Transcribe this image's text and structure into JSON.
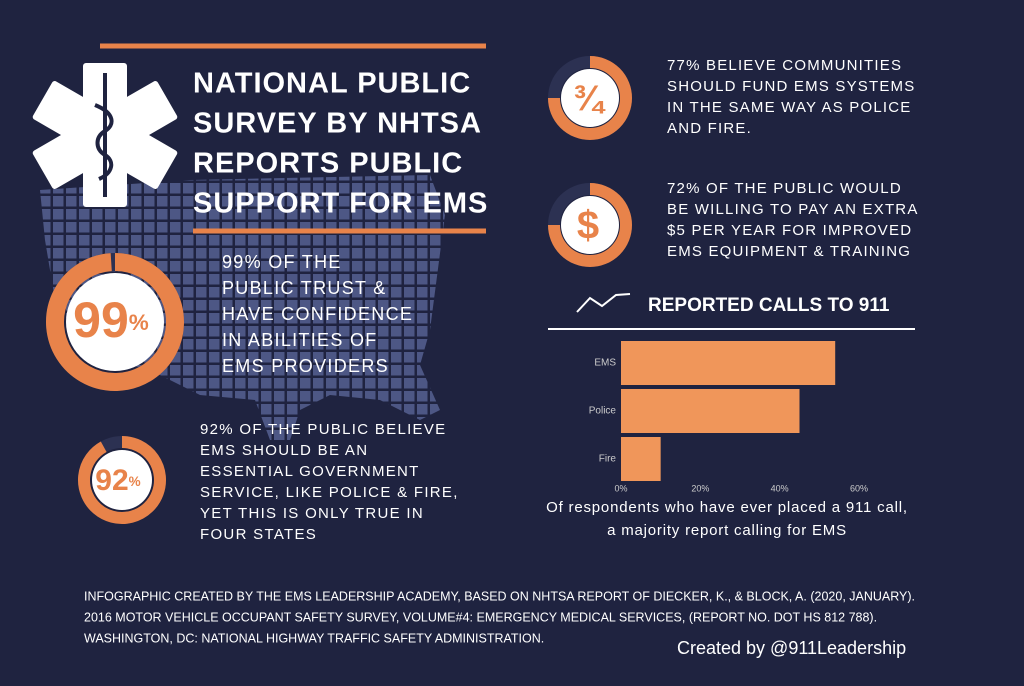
{
  "title_lines": [
    "NATIONAL PUBLIC",
    "SURVEY BY NHTSA",
    "REPORTS PUBLIC",
    "SUPPORT FOR EMS"
  ],
  "stats": [
    {
      "value": 99,
      "label": "99",
      "unit": "%",
      "lines": [
        "99% OF THE",
        "PUBLIC TRUST &",
        "HAVE CONFIDENCE",
        "IN ABILITIES OF",
        "EMS PROVIDERS"
      ]
    },
    {
      "value": 92,
      "label": "92",
      "unit": "%",
      "lines": [
        "92% OF THE PUBLIC BELIEVE",
        "EMS SHOULD BE AN",
        "ESSENTIAL GOVERNMENT",
        "SERVICE, LIKE POLICE & FIRE,",
        "YET THIS IS ONLY TRUE IN",
        "FOUR STATES"
      ]
    }
  ],
  "facts": [
    {
      "icon": "¾",
      "lines": [
        "77% BELIEVE COMMUNITIES",
        "SHOULD FUND EMS SYSTEMS",
        "IN THE SAME WAY AS POLICE",
        "AND FIRE."
      ]
    },
    {
      "icon": "$",
      "lines": [
        "72% OF THE PUBLIC WOULD",
        "BE WILLING TO PAY AN EXTRA",
        "$5 PER YEAR FOR IMPROVED",
        "EMS EQUIPMENT & TRAINING"
      ]
    }
  ],
  "chart_data": {
    "type": "barh",
    "title": "REPORTED CALLS TO 911",
    "categories": [
      "EMS",
      "Police",
      "Fire"
    ],
    "values": [
      54,
      45,
      10
    ],
    "color": "#f0965a",
    "xlim": [
      0,
      60
    ],
    "xticks": [
      {
        "value": 0,
        "label": "0%"
      },
      {
        "value": 20,
        "label": "20%"
      },
      {
        "value": 40,
        "label": "40%"
      },
      {
        "value": 60,
        "label": "60%"
      }
    ],
    "caption": [
      "Of respondents who have ever placed a 911 call,",
      "a majority report calling for EMS"
    ]
  },
  "footer": [
    "INFOGRAPHIC CREATED BY THE EMS LEADERSHIP ACADEMY, BASED ON NHTSA REPORT OF DIECKER, K., & BLOCK, A. (2020, JANUARY).",
    "2016 MOTOR VEHICLE OCCUPANT SAFETY SURVEY, VOLUME#4: EMERGENCY MEDICAL SERVICES, (REPORT NO. DOT HS 812 788).",
    "WASHINGTON, DC: NATIONAL HIGHWAY TRAFFIC SAFETY ADMINISTRATION."
  ],
  "credit": "Created by @911Leadership"
}
